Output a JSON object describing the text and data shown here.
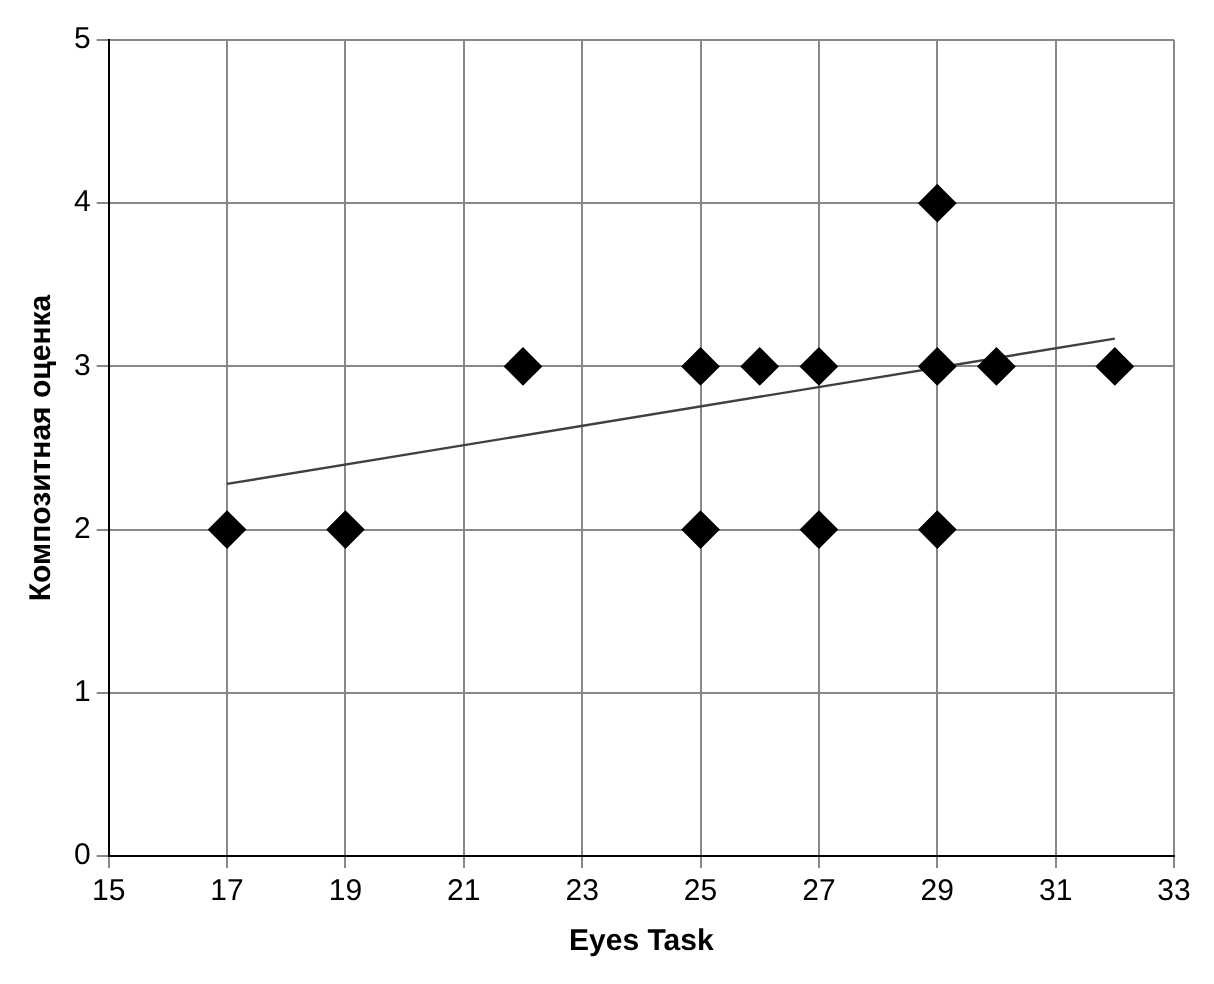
{
  "chart_data": {
    "type": "scatter",
    "xlabel": "Eyes Task",
    "ylabel": "Композитная оценка",
    "xlim": [
      15,
      33
    ],
    "xticks": [
      15,
      17,
      19,
      21,
      23,
      25,
      27,
      29,
      31,
      33
    ],
    "ylim": [
      0,
      5
    ],
    "yticks": [
      0,
      1,
      2,
      3,
      4,
      5
    ],
    "grid": true,
    "marker": "diamond",
    "legend": false,
    "series": [
      {
        "type": "scatter",
        "color": "#000000",
        "x": [
          17,
          19,
          22,
          25,
          25,
          26,
          27,
          27,
          29,
          29,
          29,
          30,
          32
        ],
        "values": [
          2,
          2,
          3,
          3,
          2,
          3,
          3,
          2,
          4,
          3,
          2,
          3,
          3
        ]
      },
      {
        "type": "line",
        "color": "#404040",
        "x": [
          17,
          32
        ],
        "values": [
          2.28,
          3.17
        ],
        "marker": "none"
      }
    ]
  }
}
